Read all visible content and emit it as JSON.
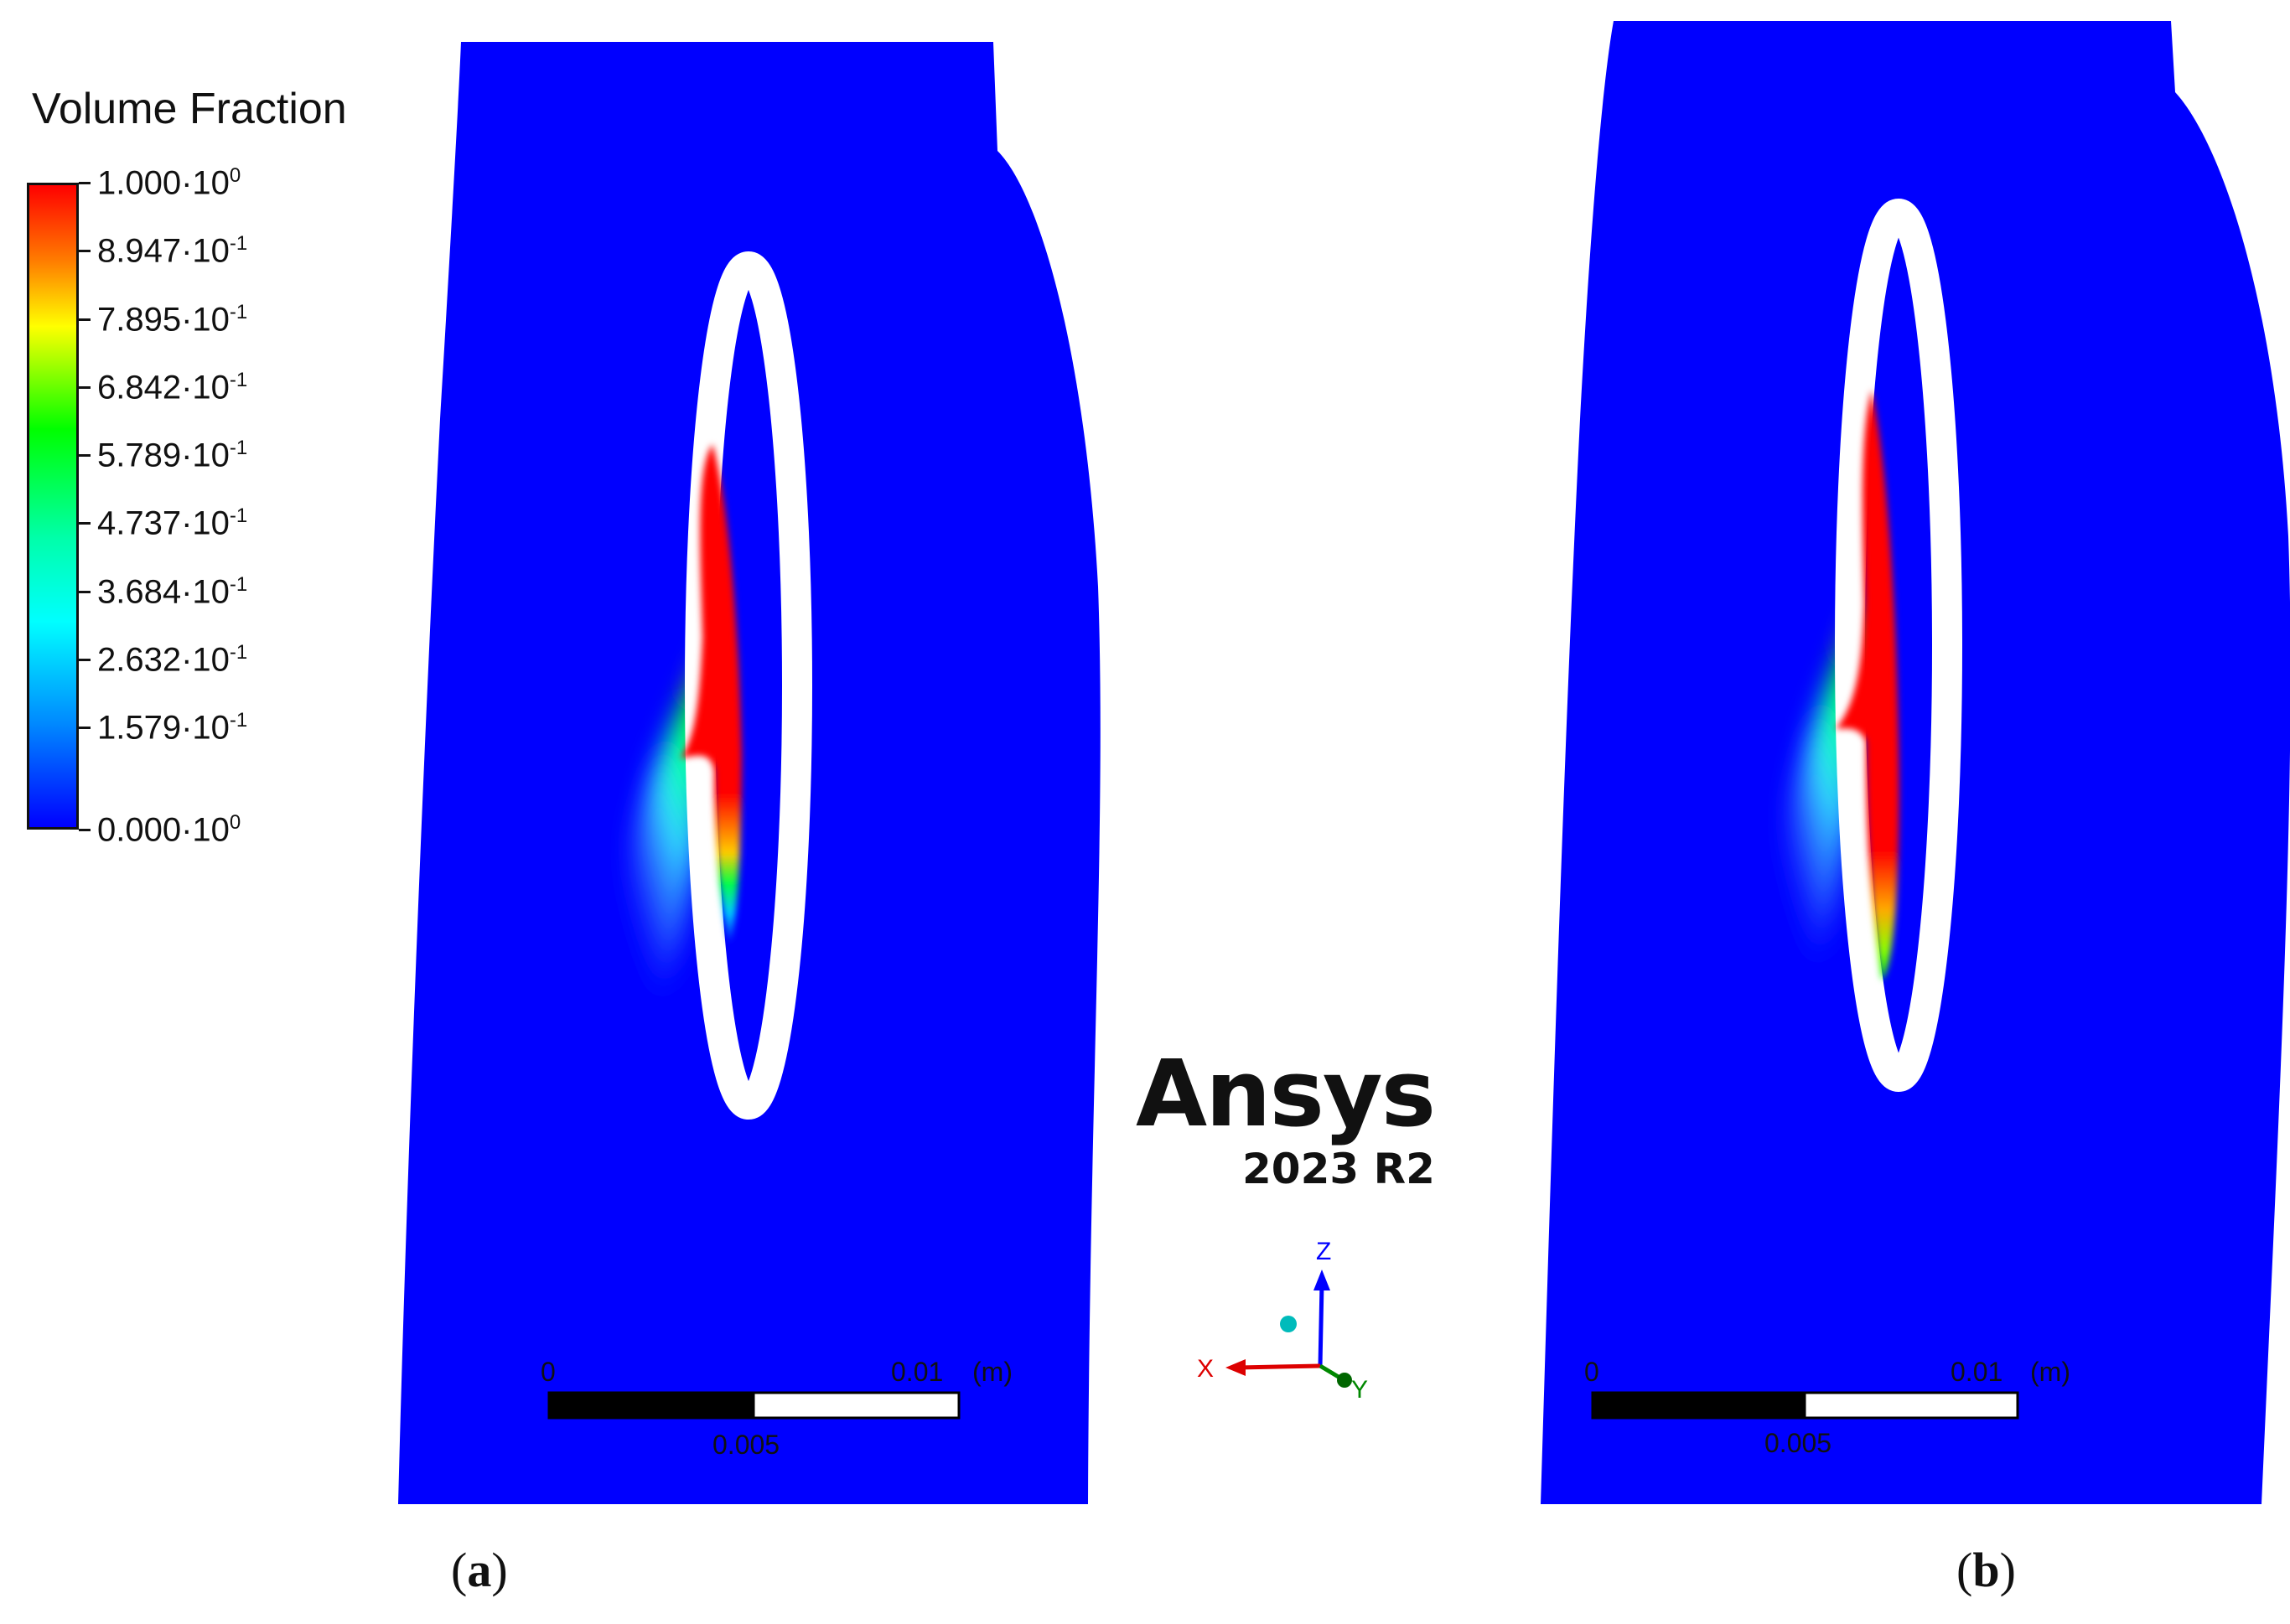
{
  "legend": {
    "title": "Volume Fraction",
    "ticks": [
      {
        "mantissa": "1.000",
        "exp": "0"
      },
      {
        "mantissa": "8.947",
        "exp": "-1"
      },
      {
        "mantissa": "7.895",
        "exp": "-1"
      },
      {
        "mantissa": "6.842",
        "exp": "-1"
      },
      {
        "mantissa": "5.789",
        "exp": "-1"
      },
      {
        "mantissa": "4.737",
        "exp": "-1"
      },
      {
        "mantissa": "3.684",
        "exp": "-1"
      },
      {
        "mantissa": "2.632",
        "exp": "-1"
      },
      {
        "mantissa": "1.579",
        "exp": "-1"
      },
      {
        "mantissa": "0.000",
        "exp": "0"
      }
    ],
    "colormap": [
      "#ff0000",
      "#ff7f00",
      "#ffff00",
      "#00ff00",
      "#00ffff",
      "#0000ff"
    ]
  },
  "panels": [
    {
      "caption": "a",
      "scale": {
        "start": "0",
        "end": "0.01",
        "unit": "(m)",
        "mid": "0.005"
      }
    },
    {
      "caption": "b",
      "scale": {
        "start": "0",
        "end": "0.01",
        "unit": "(m)",
        "mid": "0.005"
      }
    }
  ],
  "brand": {
    "name": "Ansys",
    "version": "2023 R2"
  },
  "axes": {
    "z": "Z",
    "x": "X",
    "y": "Y"
  },
  "colors": {
    "fluid_blue": "#0000ff",
    "liquid_red": "#ff0000",
    "background": "#ffffff"
  }
}
